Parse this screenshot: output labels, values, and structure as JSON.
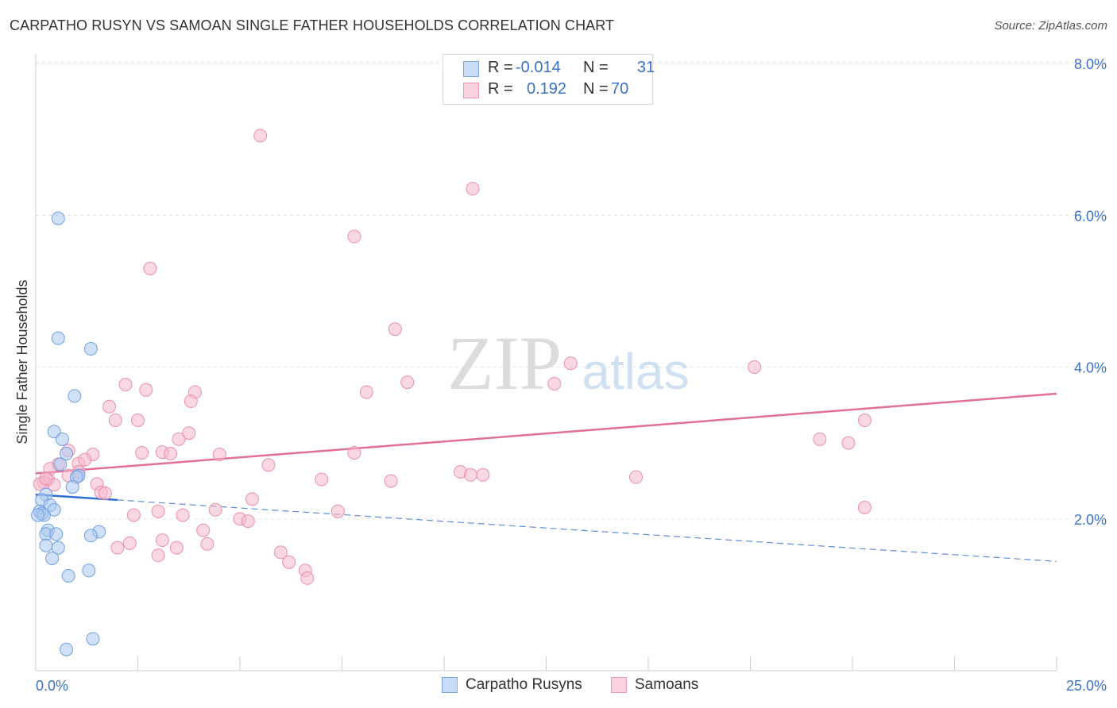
{
  "header": {
    "title": "CARPATHO RUSYN VS SAMOAN SINGLE FATHER HOUSEHOLDS CORRELATION CHART",
    "source": "Source: ZipAtlas.com"
  },
  "watermark": {
    "zip": "ZIP",
    "atlas": "atlas"
  },
  "legend": {
    "rows": [
      {
        "r_label": "R =",
        "r_value": "-0.014",
        "n_label": "N =",
        "n_value": "31",
        "color": "#a9c8f0"
      },
      {
        "r_label": "R =",
        "r_value": "0.192",
        "n_label": "N =",
        "n_value": "70",
        "color": "#f5b8cb"
      }
    ]
  },
  "bottom_legend": [
    {
      "label": "Carpatho Rusyns",
      "color": "#a9c8f0"
    },
    {
      "label": "Samoans",
      "color": "#f5b8cb"
    }
  ],
  "chart_data": {
    "type": "scatter",
    "title": "CARPATHO RUSYN VS SAMOAN SINGLE FATHER HOUSEHOLDS CORRELATION CHART",
    "ylabel": "Single Father Households",
    "xlabel": "",
    "xlim": [
      0,
      25
    ],
    "ylim": [
      0,
      8
    ],
    "x_tick_labels": [
      "0.0%",
      "25.0%"
    ],
    "y_ticks": [
      2,
      4,
      6,
      8
    ],
    "y_tick_labels": [
      "2.0%",
      "4.0%",
      "6.0%",
      "8.0%"
    ],
    "grid": true,
    "legend_position": "top-center",
    "series": [
      {
        "name": "Carpatho Rusyns",
        "color": "#5b8fd9",
        "fill": "#a9c8f0",
        "trend": {
          "x": [
            0,
            25
          ],
          "y": [
            2.32,
            1.44
          ],
          "solid_until_x": 2.0
        },
        "points": [
          [
            0.55,
            5.96
          ],
          [
            0.55,
            4.38
          ],
          [
            1.35,
            4.24
          ],
          [
            0.95,
            3.62
          ],
          [
            0.45,
            3.15
          ],
          [
            0.65,
            3.05
          ],
          [
            0.75,
            2.86
          ],
          [
            0.6,
            2.72
          ],
          [
            1.05,
            2.57
          ],
          [
            1.0,
            2.55
          ],
          [
            0.9,
            2.42
          ],
          [
            0.25,
            2.32
          ],
          [
            0.15,
            2.25
          ],
          [
            0.35,
            2.18
          ],
          [
            0.45,
            2.12
          ],
          [
            0.1,
            2.1
          ],
          [
            0.15,
            2.07
          ],
          [
            0.2,
            2.05
          ],
          [
            0.3,
            1.85
          ],
          [
            0.25,
            1.8
          ],
          [
            0.5,
            1.8
          ],
          [
            1.55,
            1.83
          ],
          [
            1.35,
            1.78
          ],
          [
            0.25,
            1.65
          ],
          [
            0.55,
            1.62
          ],
          [
            0.4,
            1.48
          ],
          [
            1.3,
            1.32
          ],
          [
            0.8,
            1.25
          ],
          [
            0.75,
            0.28
          ],
          [
            1.4,
            0.42
          ],
          [
            0.05,
            2.05
          ]
        ]
      },
      {
        "name": "Samoans",
        "color": "#e0709a",
        "fill": "#f5b8cb",
        "trend": {
          "x": [
            0,
            25
          ],
          "y": [
            2.6,
            3.65
          ]
        },
        "points": [
          [
            5.5,
            7.05
          ],
          [
            10.7,
            6.35
          ],
          [
            7.8,
            5.72
          ],
          [
            2.8,
            5.3
          ],
          [
            8.8,
            4.5
          ],
          [
            13.1,
            4.05
          ],
          [
            17.6,
            4.0
          ],
          [
            2.2,
            3.77
          ],
          [
            2.7,
            3.7
          ],
          [
            3.9,
            3.67
          ],
          [
            8.1,
            3.67
          ],
          [
            9.1,
            3.8
          ],
          [
            12.7,
            3.78
          ],
          [
            3.8,
            3.55
          ],
          [
            1.8,
            3.48
          ],
          [
            1.95,
            3.3
          ],
          [
            2.5,
            3.3
          ],
          [
            3.75,
            3.13
          ],
          [
            3.5,
            3.05
          ],
          [
            19.2,
            3.05
          ],
          [
            19.9,
            3.0
          ],
          [
            20.3,
            3.3
          ],
          [
            3.1,
            2.88
          ],
          [
            2.6,
            2.87
          ],
          [
            3.3,
            2.86
          ],
          [
            4.5,
            2.85
          ],
          [
            0.8,
            2.9
          ],
          [
            1.4,
            2.85
          ],
          [
            7.8,
            2.87
          ],
          [
            1.05,
            2.73
          ],
          [
            1.2,
            2.78
          ],
          [
            0.55,
            2.72
          ],
          [
            5.7,
            2.71
          ],
          [
            0.35,
            2.66
          ],
          [
            1.05,
            2.62
          ],
          [
            0.8,
            2.57
          ],
          [
            10.4,
            2.62
          ],
          [
            10.65,
            2.58
          ],
          [
            10.95,
            2.58
          ],
          [
            14.7,
            2.55
          ],
          [
            0.3,
            2.52
          ],
          [
            0.2,
            2.48
          ],
          [
            0.1,
            2.46
          ],
          [
            0.45,
            2.45
          ],
          [
            1.5,
            2.46
          ],
          [
            7.0,
            2.52
          ],
          [
            8.7,
            2.5
          ],
          [
            1.6,
            2.35
          ],
          [
            1.7,
            2.34
          ],
          [
            5.3,
            2.26
          ],
          [
            4.4,
            2.12
          ],
          [
            7.4,
            2.1
          ],
          [
            2.4,
            2.05
          ],
          [
            3.0,
            2.1
          ],
          [
            3.6,
            2.05
          ],
          [
            5.0,
            2.0
          ],
          [
            5.2,
            1.97
          ],
          [
            4.1,
            1.85
          ],
          [
            20.3,
            2.15
          ],
          [
            3.1,
            1.72
          ],
          [
            2.3,
            1.68
          ],
          [
            4.2,
            1.67
          ],
          [
            2.0,
            1.62
          ],
          [
            3.45,
            1.62
          ],
          [
            3.0,
            1.52
          ],
          [
            6.0,
            1.56
          ],
          [
            6.2,
            1.43
          ],
          [
            6.6,
            1.32
          ],
          [
            6.65,
            1.22
          ],
          [
            0.25,
            2.53
          ]
        ]
      }
    ]
  }
}
